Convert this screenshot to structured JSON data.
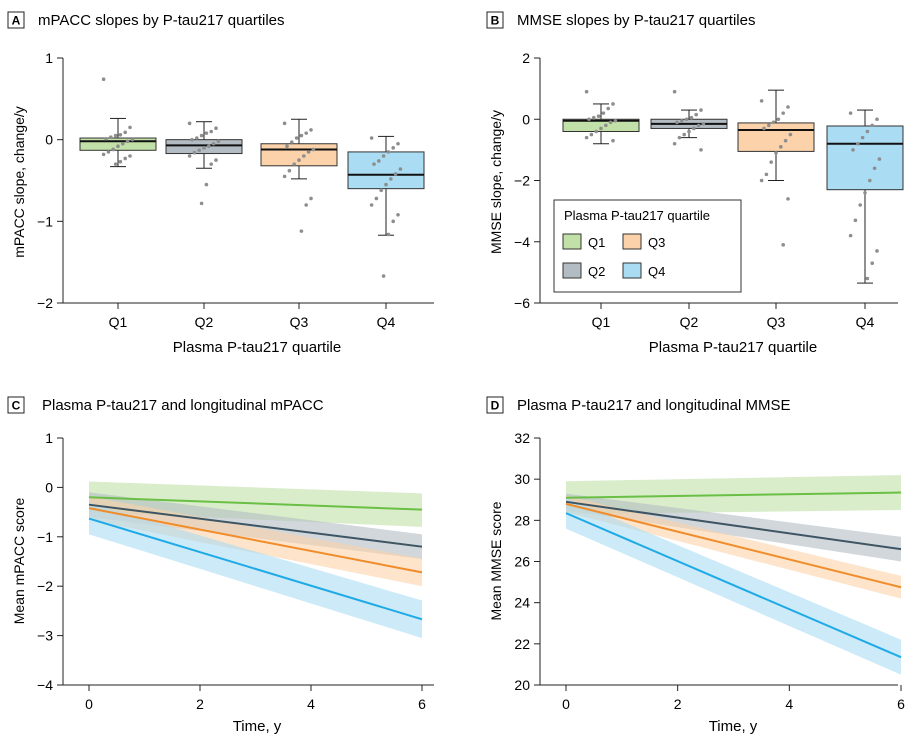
{
  "colors": {
    "Q1": "#6abf45",
    "Q2": "#3e5564",
    "Q3": "#f08c2a",
    "Q4": "#1eaae6",
    "Q1_fill": "#c2e1a8",
    "Q2_fill": "#b3bcc3",
    "Q3_fill": "#fbd2a9",
    "Q4_fill": "#aadcf3",
    "dots": "#8e8e8e"
  },
  "legend": {
    "title": "Plasma P-tau217 quartile",
    "items": [
      "Q1",
      "Q2",
      "Q3",
      "Q4"
    ]
  },
  "chart_data": [
    {
      "panel": "A",
      "type": "box",
      "title": "mPACC slopes by P-tau217 quartiles",
      "xlabel": "Plasma P-tau217 quartile",
      "ylabel": "mPACC slope, change/y",
      "categories": [
        "Q1",
        "Q2",
        "Q3",
        "Q4"
      ],
      "ylim": [
        -2,
        1
      ],
      "yticks": [
        1,
        0,
        -1,
        -2
      ],
      "yticklabels": [
        "1",
        "0",
        "−1",
        "−2"
      ],
      "boxes": [
        {
          "q1": -0.13,
          "median": -0.02,
          "q3": 0.02,
          "whisker_low": -0.33,
          "whisker_high": 0.26
        },
        {
          "q1": -0.17,
          "median": -0.07,
          "q3": 0.0,
          "whisker_low": -0.35,
          "whisker_high": 0.22
        },
        {
          "q1": -0.32,
          "median": -0.12,
          "q3": -0.05,
          "whisker_low": -0.48,
          "whisker_high": 0.25
        },
        {
          "q1": -0.6,
          "median": -0.43,
          "q3": -0.15,
          "whisker_low": -1.17,
          "whisker_high": 0.04
        }
      ],
      "points": [
        [
          0.74,
          0.15,
          0.09,
          0.06,
          0.05,
          0.03,
          0.01,
          0.0,
          -0.02,
          -0.05,
          -0.08,
          -0.12,
          -0.15,
          -0.18,
          -0.2,
          -0.23,
          -0.27,
          -0.3
        ],
        [
          0.2,
          0.14,
          0.1,
          0.08,
          0.05,
          0.02,
          0.0,
          -0.02,
          -0.05,
          -0.08,
          -0.1,
          -0.13,
          -0.16,
          -0.2,
          -0.25,
          -0.3,
          -0.55,
          -0.78
        ],
        [
          0.2,
          0.12,
          0.08,
          0.05,
          0.02,
          -0.03,
          -0.08,
          -0.12,
          -0.15,
          -0.2,
          -0.25,
          -0.3,
          -0.38,
          -0.45,
          -0.72,
          -0.8,
          -1.12
        ],
        [
          0.02,
          -0.05,
          -0.1,
          -0.15,
          -0.2,
          -0.26,
          -0.3,
          -0.36,
          -0.42,
          -0.48,
          -0.55,
          -0.62,
          -0.72,
          -0.8,
          -0.92,
          -1.0,
          -1.16,
          -1.67
        ]
      ]
    },
    {
      "panel": "B",
      "type": "box",
      "title": "MMSE slopes by P-tau217 quartiles",
      "xlabel": "Plasma P-tau217 quartile",
      "ylabel": "MMSE slope, change/y",
      "categories": [
        "Q1",
        "Q2",
        "Q3",
        "Q4"
      ],
      "ylim": [
        -6,
        2
      ],
      "yticks": [
        2,
        0,
        -2,
        -4,
        -6
      ],
      "yticklabels": [
        "2",
        "0",
        "−2",
        "−4",
        "−6"
      ],
      "boxes": [
        {
          "q1": -0.4,
          "median": -0.05,
          "q3": 0.0,
          "whisker_low": -0.8,
          "whisker_high": 0.5
        },
        {
          "q1": -0.3,
          "median": -0.15,
          "q3": 0.0,
          "whisker_low": -0.6,
          "whisker_high": 0.3
        },
        {
          "q1": -1.05,
          "median": -0.35,
          "q3": -0.12,
          "whisker_low": -2.0,
          "whisker_high": 0.95
        },
        {
          "q1": -2.3,
          "median": -0.8,
          "q3": -0.22,
          "whisker_low": -5.35,
          "whisker_high": 0.3
        }
      ],
      "points": [
        [
          0.9,
          0.5,
          0.35,
          0.2,
          0.1,
          0.05,
          0.0,
          -0.05,
          -0.1,
          -0.2,
          -0.3,
          -0.4,
          -0.5,
          -0.6,
          -0.7
        ],
        [
          0.9,
          0.3,
          0.15,
          0.05,
          0.0,
          -0.05,
          -0.1,
          -0.15,
          -0.2,
          -0.3,
          -0.4,
          -0.5,
          -0.6,
          -0.8,
          -1.0
        ],
        [
          0.6,
          0.4,
          0.2,
          0.0,
          -0.1,
          -0.2,
          -0.3,
          -0.5,
          -0.7,
          -0.9,
          -1.1,
          -1.4,
          -1.8,
          -2.0,
          -2.6,
          -4.1
        ],
        [
          0.2,
          0.0,
          -0.2,
          -0.4,
          -0.6,
          -0.8,
          -1.0,
          -1.3,
          -1.6,
          -2.0,
          -2.4,
          -2.8,
          -3.3,
          -3.8,
          -4.3,
          -4.7,
          -5.2
        ]
      ]
    },
    {
      "panel": "C",
      "type": "line",
      "title": "Plasma P-tau217 and longitudinal mPACC",
      "xlabel": "Time, y",
      "ylabel": "Mean mPACC score",
      "xlim": [
        0,
        6
      ],
      "ylim": [
        -4,
        1
      ],
      "xticks": [
        0,
        2,
        4,
        6
      ],
      "yticks": [
        1,
        0,
        -1,
        -2,
        -3,
        -4
      ],
      "yticklabels": [
        "1",
        "0",
        "−1",
        "−2",
        "−3",
        "−4"
      ],
      "series": [
        {
          "name": "Q1",
          "x": [
            0,
            6
          ],
          "y": [
            -0.2,
            -0.45
          ],
          "lower": [
            -0.5,
            -0.8
          ],
          "upper": [
            0.12,
            -0.12
          ]
        },
        {
          "name": "Q2",
          "x": [
            0,
            6
          ],
          "y": [
            -0.35,
            -1.2
          ],
          "lower": [
            -0.6,
            -1.45
          ],
          "upper": [
            -0.1,
            -0.95
          ]
        },
        {
          "name": "Q3",
          "x": [
            0,
            6
          ],
          "y": [
            -0.42,
            -1.72
          ],
          "lower": [
            -0.66,
            -2.0
          ],
          "upper": [
            -0.18,
            -1.44
          ]
        },
        {
          "name": "Q4",
          "x": [
            0,
            6
          ],
          "y": [
            -0.63,
            -2.67
          ],
          "lower": [
            -0.95,
            -3.05
          ],
          "upper": [
            -0.31,
            -2.29
          ]
        }
      ]
    },
    {
      "panel": "D",
      "type": "line",
      "title": "Plasma P-tau217 and longitudinal MMSE",
      "xlabel": "Time, y",
      "ylabel": "Mean MMSE score",
      "xlim": [
        0,
        6
      ],
      "ylim": [
        20,
        32
      ],
      "xticks": [
        0,
        2,
        4,
        6
      ],
      "yticks": [
        32,
        30,
        28,
        26,
        24,
        22,
        20
      ],
      "yticklabels": [
        "32",
        "30",
        "28",
        "26",
        "24",
        "22",
        "20"
      ],
      "series": [
        {
          "name": "Q1",
          "x": [
            0,
            6
          ],
          "y": [
            29.1,
            29.35
          ],
          "lower": [
            28.3,
            28.5
          ],
          "upper": [
            29.9,
            30.2
          ]
        },
        {
          "name": "Q2",
          "x": [
            0,
            6
          ],
          "y": [
            28.9,
            26.6
          ],
          "lower": [
            28.5,
            26.0
          ],
          "upper": [
            29.3,
            27.2
          ]
        },
        {
          "name": "Q3",
          "x": [
            0,
            6
          ],
          "y": [
            28.8,
            24.75
          ],
          "lower": [
            28.4,
            24.2
          ],
          "upper": [
            29.2,
            25.3
          ]
        },
        {
          "name": "Q4",
          "x": [
            0,
            6
          ],
          "y": [
            28.35,
            21.35
          ],
          "lower": [
            27.6,
            20.5
          ],
          "upper": [
            29.1,
            22.2
          ]
        }
      ]
    }
  ]
}
